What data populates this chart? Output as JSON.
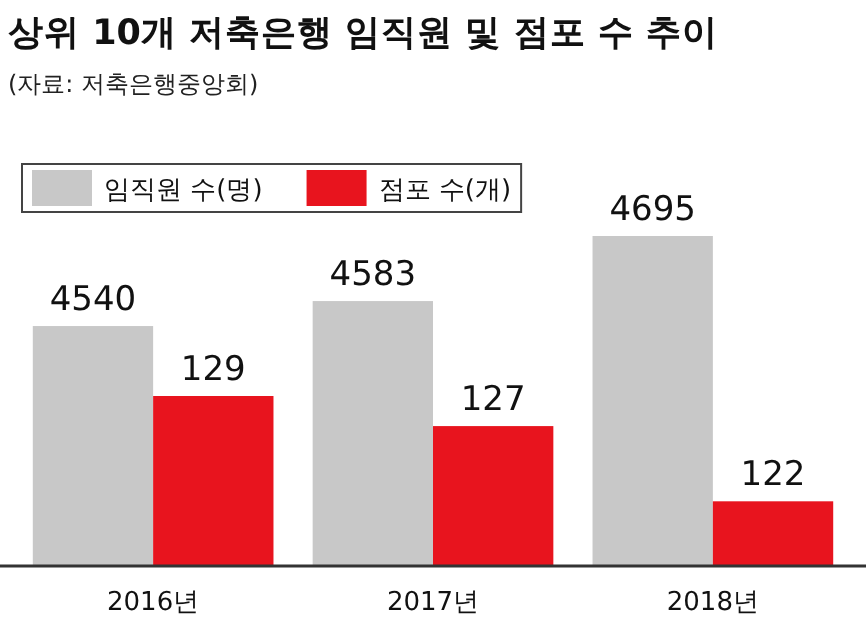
{
  "chart_data": {
    "type": "bar",
    "title": "상위 10개 저축은행 임직원 및 점포 수 추이",
    "subtitle": "(자료: 저축은행중앙회)",
    "categories": [
      "2016년",
      "2017년",
      "2018년"
    ],
    "series": [
      {
        "name": "임직원 수(명)",
        "color": "#c8c8c8",
        "values": [
          4540,
          4583,
          4695
        ]
      },
      {
        "name": "점포 수(개)",
        "color": "#e8141e",
        "values": [
          129,
          127,
          122
        ],
        "axis": "y2"
      }
    ],
    "ylim": [
      4127,
      4695
    ],
    "y2lim": [
      117.7,
      129
    ],
    "data_labels": true,
    "legend": "top left",
    "tick_labels": "x"
  }
}
